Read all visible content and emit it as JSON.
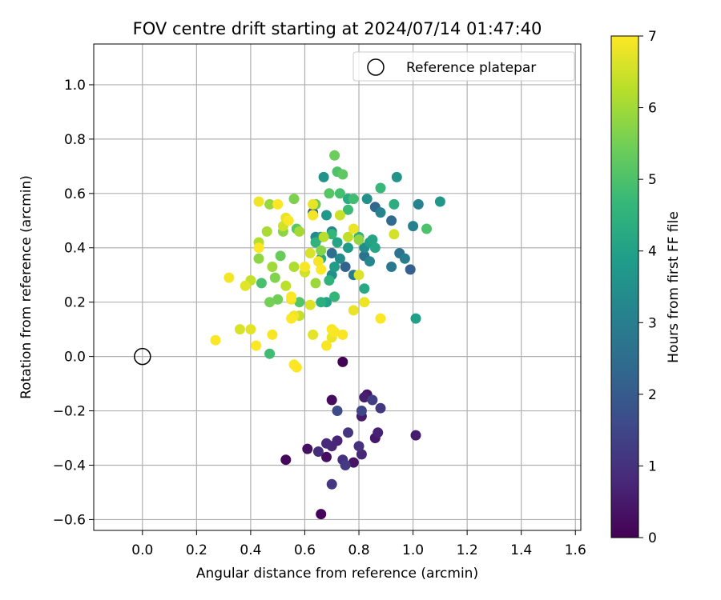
{
  "chart_data": {
    "type": "scatter",
    "title": "FOV centre drift starting at 2024/07/14 01:47:40",
    "xlabel": "Angular distance from reference (arcmin)",
    "ylabel": "Rotation from reference (arcmin)",
    "xlim": [
      -0.18,
      1.62
    ],
    "ylim": [
      -0.64,
      1.15
    ],
    "xticks": [
      0.0,
      0.2,
      0.4,
      0.6,
      0.8,
      1.0,
      1.2,
      1.4,
      1.6
    ],
    "yticks": [
      -0.6,
      -0.4,
      -0.2,
      0.0,
      0.2,
      0.4,
      0.6,
      0.8,
      1.0
    ],
    "xtick_labels": [
      "0.0",
      "0.2",
      "0.4",
      "0.6",
      "0.8",
      "1.0",
      "1.2",
      "1.4",
      "1.6"
    ],
    "ytick_labels": [
      "−0.6",
      "−0.4",
      "−0.2",
      "0.0",
      "0.2",
      "0.4",
      "0.6",
      "0.8",
      "1.0"
    ],
    "grid": true,
    "legend": {
      "position": "top-right",
      "entries": [
        "Reference platepar"
      ]
    },
    "reference": {
      "label": "Reference platepar",
      "x": 0.0,
      "y": 0.0,
      "marker": "open-circle",
      "color": "#000000"
    },
    "colorbar": {
      "label": "Hours from first FF file",
      "range": [
        0,
        7
      ],
      "ticks": [
        0,
        1,
        2,
        3,
        4,
        5,
        6,
        7
      ],
      "tick_labels": [
        "0",
        "1",
        "2",
        "3",
        "4",
        "5",
        "6",
        "7"
      ],
      "colormap": "viridis",
      "stops": [
        "#440154",
        "#482878",
        "#3e4989",
        "#31688e",
        "#26828e",
        "#1f9e89",
        "#35b779",
        "#6ece58",
        "#b5de2b",
        "#fde725"
      ]
    },
    "series": [
      {
        "values": [
          [
            0.74,
            -0.02,
            0.05
          ],
          [
            0.66,
            -0.58,
            0.1
          ],
          [
            0.53,
            -0.38,
            0.15
          ],
          [
            0.7,
            -0.16,
            0.2
          ],
          [
            0.68,
            -0.37,
            0.25
          ],
          [
            0.61,
            -0.34,
            0.3
          ],
          [
            0.78,
            -0.39,
            0.35
          ],
          [
            0.83,
            -0.14,
            0.4
          ],
          [
            0.86,
            -0.3,
            0.45
          ],
          [
            0.81,
            -0.22,
            0.5
          ],
          [
            1.01,
            -0.29,
            0.55
          ],
          [
            0.82,
            -0.15,
            0.6
          ],
          [
            0.87,
            -0.28,
            0.65
          ],
          [
            0.72,
            -0.31,
            0.7
          ],
          [
            0.81,
            -0.36,
            0.75
          ],
          [
            0.7,
            -0.33,
            0.8
          ],
          [
            0.68,
            -0.32,
            0.85
          ],
          [
            0.65,
            -0.35,
            0.9
          ],
          [
            0.74,
            -0.38,
            0.95
          ],
          [
            0.8,
            -0.33,
            1.0
          ],
          [
            0.76,
            -0.28,
            1.05
          ],
          [
            0.7,
            -0.47,
            1.1
          ],
          [
            0.88,
            -0.19,
            1.15
          ],
          [
            0.75,
            -0.4,
            1.2
          ],
          [
            0.85,
            -0.16,
            1.3
          ],
          [
            0.81,
            -0.2,
            1.45
          ],
          [
            0.72,
            -0.2,
            1.6
          ],
          [
            0.63,
            0.53,
            2.0
          ],
          [
            0.99,
            0.32,
            2.1
          ],
          [
            0.75,
            0.33,
            2.2
          ],
          [
            0.86,
            0.55,
            2.3
          ],
          [
            0.92,
            0.5,
            2.4
          ],
          [
            0.7,
            0.38,
            2.5
          ],
          [
            0.82,
            0.37,
            2.6
          ],
          [
            0.95,
            0.38,
            2.7
          ],
          [
            0.92,
            0.33,
            2.8
          ],
          [
            0.78,
            0.3,
            2.9
          ],
          [
            0.97,
            0.36,
            3.0
          ],
          [
            1.0,
            0.48,
            3.05
          ],
          [
            1.02,
            0.56,
            3.1
          ],
          [
            0.88,
            0.53,
            3.15
          ],
          [
            0.7,
            0.46,
            3.2
          ],
          [
            0.84,
            0.35,
            3.25
          ],
          [
            0.64,
            0.44,
            3.3
          ],
          [
            0.73,
            0.36,
            3.35
          ],
          [
            0.82,
            0.4,
            3.4
          ],
          [
            0.7,
            0.3,
            3.45
          ],
          [
            0.83,
            0.58,
            3.5
          ],
          [
            0.67,
            0.66,
            3.55
          ],
          [
            0.94,
            0.66,
            3.6
          ],
          [
            0.66,
            0.44,
            3.65
          ],
          [
            1.1,
            0.57,
            3.7
          ],
          [
            0.68,
            0.52,
            3.75
          ],
          [
            0.76,
            0.4,
            3.8
          ],
          [
            0.71,
            0.33,
            3.85
          ],
          [
            0.84,
            0.42,
            3.9
          ],
          [
            1.01,
            0.14,
            3.95
          ],
          [
            0.68,
            0.2,
            4.0
          ],
          [
            0.85,
            0.43,
            4.05
          ],
          [
            0.72,
            0.42,
            4.1
          ],
          [
            0.86,
            0.4,
            4.15
          ],
          [
            0.82,
            0.25,
            4.2
          ],
          [
            0.66,
            0.36,
            4.25
          ],
          [
            0.76,
            0.58,
            4.3
          ],
          [
            0.93,
            0.56,
            4.35
          ],
          [
            0.66,
            0.2,
            4.4
          ],
          [
            0.8,
            0.44,
            4.45
          ],
          [
            0.69,
            0.28,
            4.5
          ],
          [
            0.64,
            0.42,
            4.55
          ],
          [
            0.7,
            0.45,
            4.6
          ],
          [
            0.71,
            0.22,
            4.65
          ],
          [
            0.88,
            0.62,
            4.7
          ],
          [
            0.76,
            0.54,
            4.75
          ],
          [
            0.47,
            0.01,
            4.8
          ],
          [
            0.78,
            0.58,
            4.85
          ],
          [
            0.73,
            0.6,
            4.9
          ],
          [
            0.44,
            0.27,
            4.95
          ],
          [
            1.05,
            0.47,
            5.0
          ],
          [
            0.72,
            0.68,
            5.05
          ],
          [
            0.58,
            0.2,
            5.1
          ],
          [
            0.69,
            0.6,
            5.15
          ],
          [
            0.57,
            0.47,
            5.2
          ],
          [
            0.74,
            0.67,
            5.25
          ],
          [
            0.64,
            0.56,
            5.3
          ],
          [
            0.51,
            0.37,
            5.35
          ],
          [
            0.71,
            0.74,
            5.4
          ],
          [
            0.5,
            0.21,
            5.45
          ],
          [
            0.47,
            0.2,
            5.5
          ],
          [
            0.56,
            0.58,
            5.6
          ],
          [
            0.49,
            0.29,
            5.65
          ],
          [
            0.66,
            0.39,
            5.7
          ],
          [
            0.52,
            0.46,
            5.75
          ],
          [
            0.43,
            0.36,
            5.8
          ],
          [
            0.8,
            0.43,
            5.85
          ],
          [
            0.47,
            0.56,
            5.9
          ],
          [
            0.64,
            0.27,
            5.95
          ],
          [
            0.48,
            0.33,
            6.0
          ],
          [
            0.58,
            0.46,
            6.05
          ],
          [
            0.46,
            0.46,
            6.1
          ],
          [
            0.56,
            0.33,
            6.15
          ],
          [
            0.43,
            0.42,
            6.2
          ],
          [
            0.67,
            0.44,
            6.25
          ],
          [
            0.53,
            0.26,
            6.3
          ],
          [
            0.76,
            0.44,
            6.35
          ],
          [
            0.4,
            0.28,
            6.4
          ],
          [
            0.73,
            0.52,
            6.45
          ],
          [
            0.6,
            0.31,
            6.5
          ],
          [
            0.93,
            0.45,
            6.55
          ],
          [
            0.62,
            0.38,
            6.6
          ],
          [
            0.8,
            0.3,
            6.65
          ],
          [
            0.38,
            0.26,
            6.7
          ],
          [
            0.63,
            0.56,
            6.75
          ],
          [
            0.78,
            0.47,
            6.8
          ],
          [
            0.43,
            0.57,
            6.85
          ],
          [
            0.65,
            0.35,
            6.9
          ],
          [
            0.53,
            0.51,
            6.95
          ],
          [
            0.27,
            0.06,
            6.98
          ],
          [
            0.58,
            0.15,
            6.4
          ],
          [
            0.52,
            0.48,
            6.5
          ],
          [
            0.36,
            0.1,
            6.6
          ],
          [
            0.62,
            0.19,
            6.62
          ],
          [
            0.63,
            0.08,
            6.7
          ],
          [
            0.4,
            0.1,
            6.72
          ],
          [
            0.53,
            0.51,
            6.75
          ],
          [
            0.78,
            0.17,
            6.78
          ],
          [
            0.7,
            0.07,
            6.8
          ],
          [
            0.82,
            0.2,
            6.82
          ],
          [
            0.55,
            0.21,
            6.85
          ],
          [
            0.56,
            0.15,
            6.87
          ],
          [
            0.32,
            0.29,
            6.88
          ],
          [
            0.63,
            0.52,
            6.9
          ],
          [
            0.48,
            0.08,
            6.92
          ],
          [
            0.6,
            0.33,
            6.93
          ],
          [
            0.68,
            0.04,
            6.95
          ],
          [
            0.74,
            0.08,
            6.95
          ],
          [
            0.7,
            0.1,
            6.96
          ],
          [
            0.71,
            0.09,
            6.96
          ],
          [
            0.55,
            0.14,
            6.97
          ],
          [
            0.54,
            0.5,
            6.97
          ],
          [
            0.88,
            0.14,
            6.98
          ],
          [
            0.66,
            0.32,
            6.98
          ],
          [
            0.42,
            0.04,
            6.99
          ],
          [
            0.55,
            0.22,
            6.99
          ],
          [
            0.56,
            -0.03,
            6.99
          ],
          [
            0.57,
            -0.04,
            7.0
          ],
          [
            0.43,
            0.4,
            7.0
          ],
          [
            0.5,
            0.56,
            7.0
          ]
        ]
      }
    ]
  }
}
